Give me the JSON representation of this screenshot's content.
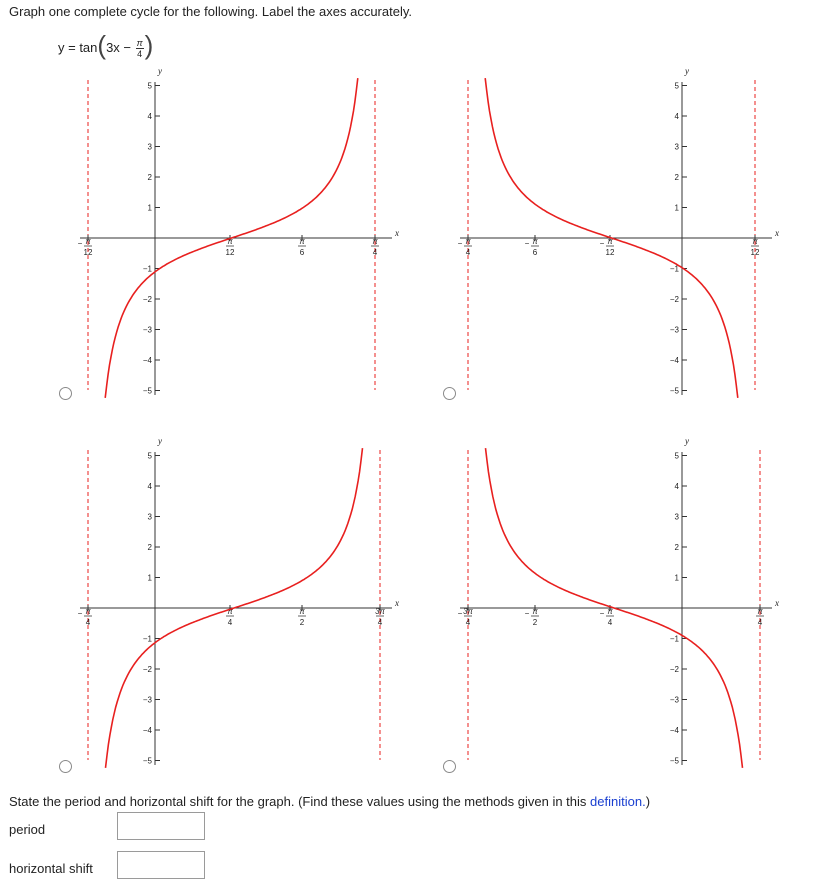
{
  "prompt": "Graph one complete cycle for the following. Label the axes accurately.",
  "equation": {
    "lhs": "y = tan",
    "inner": "3x −",
    "frac_num": "π",
    "frac_den": "4"
  },
  "axis_x": "x",
  "axis_y": "y",
  "graphs": [
    {
      "ticks": [
        {
          "num": "π",
          "den": "12",
          "sign": "−"
        },
        {
          "num": "π",
          "den": "12",
          "sign": ""
        },
        {
          "num": "π",
          "den": "6",
          "sign": ""
        },
        {
          "num": "π",
          "den": "4",
          "sign": ""
        }
      ],
      "yticks": [
        "5",
        "4",
        "3",
        "2",
        "1",
        "−1",
        "−2",
        "−3",
        "−4",
        "−5"
      ]
    },
    {
      "ticks": [
        {
          "num": "π",
          "den": "4",
          "sign": "−"
        },
        {
          "num": "π",
          "den": "6",
          "sign": "−"
        },
        {
          "num": "π",
          "den": "12",
          "sign": "−"
        },
        {
          "num": "π",
          "den": "12",
          "sign": ""
        }
      ],
      "yticks": [
        "5",
        "4",
        "3",
        "2",
        "1",
        "−1",
        "−2",
        "−3",
        "−4",
        "−5"
      ]
    },
    {
      "ticks": [
        {
          "num": "π",
          "den": "4",
          "sign": "−"
        },
        {
          "num": "π",
          "den": "4",
          "sign": ""
        },
        {
          "num": "π",
          "den": "2",
          "sign": ""
        },
        {
          "num": "3π",
          "den": "4",
          "sign": ""
        }
      ],
      "yticks": [
        "5",
        "4",
        "3",
        "2",
        "1",
        "−1",
        "−2",
        "−3",
        "−4",
        "−5"
      ]
    },
    {
      "ticks": [
        {
          "num": "3π",
          "den": "4",
          "sign": "−"
        },
        {
          "num": "π",
          "den": "2",
          "sign": "−"
        },
        {
          "num": "π",
          "den": "4",
          "sign": "−"
        },
        {
          "num": "π",
          "den": "4",
          "sign": ""
        }
      ],
      "yticks": [
        "5",
        "4",
        "3",
        "2",
        "1",
        "−1",
        "−2",
        "−3",
        "−4",
        "−5"
      ]
    }
  ],
  "question": {
    "text": "State the period and horizontal shift for the graph. (Find these values using the methods given in this",
    "link": "definition.",
    "close": ")"
  },
  "fields": {
    "period_label": "period",
    "period_value": "",
    "shift_label": "horizontal shift",
    "shift_value": ""
  },
  "colors": {
    "curve": "#e8201f",
    "asymptote": "#e8201f",
    "axis": "#333333",
    "link": "#1a3fd0"
  }
}
